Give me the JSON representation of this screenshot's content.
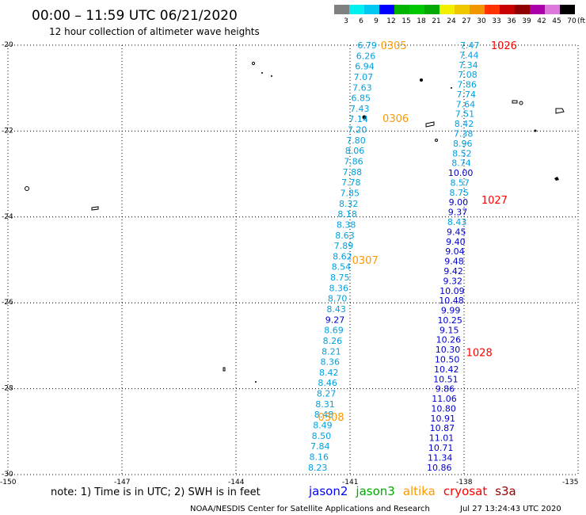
{
  "title": "00:00 – 11:59 UTC 06/21/2020",
  "subtitle": "12 hour collection of altimeter wave heights",
  "note": "note: 1) Time is in UTC; 2) SWH is in feet",
  "credit": "NOAA/NESDIS Center for Satellite Applications and Research",
  "timestamp": "Jul 27 13:24:43 UTC 2020",
  "colorbar": {
    "labels": [
      "3",
      "6",
      "9",
      "12",
      "15",
      "18",
      "21",
      "24",
      "27",
      "30",
      "33",
      "36",
      "39",
      "42",
      "45",
      "70"
    ],
    "unit": "(ft)",
    "colors": [
      "#808080",
      "#00f0f0",
      "#00c8f0",
      "#0000ff",
      "#00b400",
      "#00c800",
      "#00aa00",
      "#f0f000",
      "#f0c800",
      "#f09600",
      "#ff3200",
      "#c80000",
      "#900000",
      "#aa00aa",
      "#dc78dc",
      "#000000"
    ]
  },
  "legend": [
    {
      "name": "jason2",
      "color": "#0000ff"
    },
    {
      "name": "jason3",
      "color": "#00aa00"
    },
    {
      "name": "altika",
      "color": "#ff9900"
    },
    {
      "name": "cryosat",
      "color": "#ff0000"
    },
    {
      "name": "s3a",
      "color": "#990000"
    }
  ],
  "chart_data": {
    "type": "scatter",
    "x_axis": {
      "min": -150,
      "max": -135,
      "ticks": [
        "-150",
        "-147",
        "-144",
        "-141",
        "-138",
        "-135"
      ],
      "tick_values": [
        -150,
        -147,
        -144,
        -141,
        -138,
        -135
      ]
    },
    "y_axis": {
      "min": -30,
      "max": -20,
      "ticks": [
        "-20",
        "-22",
        "-24",
        "-26",
        "-28",
        "-30"
      ],
      "tick_values": [
        -20,
        -22,
        -24,
        -26,
        -28,
        -30
      ]
    },
    "grid": "dotted",
    "color_scale": {
      "bounds": [
        9,
        12
      ],
      "low_color": "#00a0e0",
      "high_color": "#0000cc"
    },
    "tracks": [
      {
        "lon_start": -140.55,
        "lat_start": -20.0,
        "lon_end": -141.85,
        "lat_end": -29.83,
        "values": [
          "6.79",
          "6.26",
          "6.94",
          "7.07",
          "7.63",
          "6.85",
          "7.43",
          "7.14",
          "7.20",
          "7.80",
          "8.06",
          "7.86",
          "7.88",
          "7.78",
          "7.85",
          "8.32",
          "8.18",
          "8.38",
          "8.63",
          "7.89",
          "8.62",
          "8.54",
          "8.75",
          "8.36",
          "8.70",
          "8.43",
          "9.27",
          "8.69",
          "8.26",
          "8.21",
          "8.36",
          "8.42",
          "8.46",
          "8.27",
          "8.31",
          "8.48",
          "8.49",
          "8.50",
          "7.84",
          "8.16",
          "8.23"
        ],
        "pass_labels": [
          {
            "label": "0305",
            "lat": -20.0,
            "lon": -139.85
          },
          {
            "label": "0306",
            "lat": -21.7,
            "lon": -139.8
          },
          {
            "label": "0307",
            "lat": -25.0,
            "lon": -140.6
          },
          {
            "label": "0308",
            "lat": -28.65,
            "lon": -141.5
          }
        ],
        "pass_color": "#ff9900"
      },
      {
        "lon_start": -137.85,
        "lat_start": -20.0,
        "lon_end": -138.65,
        "lat_end": -29.83,
        "values": [
          "7.47",
          "7.44",
          "7.34",
          "7.08",
          "7.86",
          "7.74",
          "7.64",
          "7.51",
          "8.42",
          "7.38",
          "8.96",
          "8.52",
          "8.74",
          "10.00",
          "8.57",
          "8.75",
          "9.00",
          "9.37",
          "8.43",
          "9.45",
          "9.40",
          "9.04",
          "9.48",
          "9.42",
          "9.32",
          "10.09",
          "10.48",
          "9.99",
          "10.25",
          "9.15",
          "10.26",
          "10.30",
          "10.50",
          "10.42",
          "10.51",
          "9.86",
          "11.06",
          "10.80",
          "10.91",
          "10.87",
          "11.01",
          "10.71",
          "11.34",
          "10.86"
        ],
        "pass_labels": [
          {
            "label": "1026",
            "lat": -20.0,
            "lon": -136.95
          },
          {
            "label": "1027",
            "lat": -23.6,
            "lon": -137.2
          },
          {
            "label": "1028",
            "lat": -27.15,
            "lon": -137.6
          }
        ],
        "pass_color": "#ff0000"
      }
    ]
  }
}
